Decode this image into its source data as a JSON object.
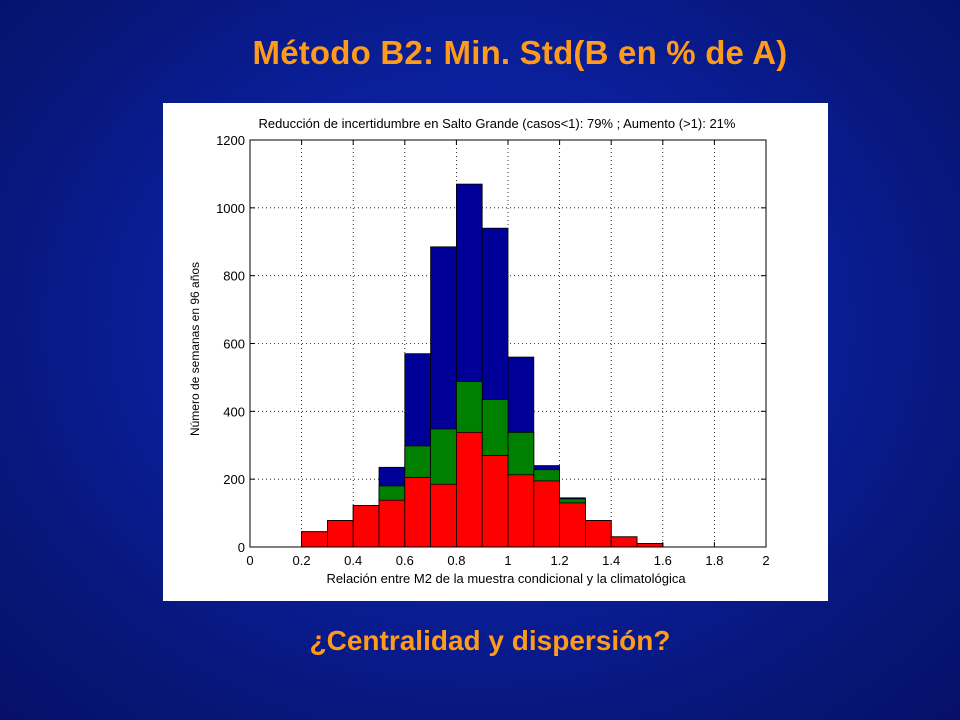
{
  "slide": {
    "title": "Método B2: Min. Std(B en % de A)",
    "subtitle": "¿Centralidad y dispersión?"
  },
  "colors": {
    "background": "#0a1f9a",
    "title_text": "#ff9a1a",
    "series_red": "#ff0000",
    "series_green": "#008000",
    "series_blue": "#000099"
  },
  "chart_data": {
    "type": "bar",
    "stacked": true,
    "title": "Reducción de incertidumbre en Salto Grande (casos<1): 79% ; Aumento (>1): 21%",
    "xlabel": "Relación entre M2 de la muestra condicional y la climatológica",
    "ylabel": "Número de semanas en 96 años",
    "xlim": [
      0,
      2
    ],
    "ylim": [
      0,
      1200
    ],
    "xticks": [
      "0",
      "0.2",
      "0.4",
      "0.6",
      "0.8",
      "1",
      "1.2",
      "1.4",
      "1.6",
      "1.8",
      "2"
    ],
    "yticks": [
      "0",
      "200",
      "400",
      "600",
      "800",
      "1000",
      "1200"
    ],
    "grid": true,
    "bin_width": 0.1,
    "bin_centers": [
      0.25,
      0.35,
      0.45,
      0.55,
      0.65,
      0.75,
      0.85,
      0.95,
      1.05,
      1.15,
      1.25,
      1.35,
      1.45,
      1.55
    ],
    "series": [
      {
        "color": "#ff0000",
        "cumulative_values": [
          45,
          78,
          122,
          138,
          205,
          185,
          338,
          270,
          213,
          195,
          130,
          78,
          30,
          10
        ]
      },
      {
        "color": "#008000",
        "cumulative_values": [
          45,
          78,
          122,
          180,
          298,
          348,
          488,
          435,
          338,
          228,
          142,
          78,
          30,
          10
        ]
      },
      {
        "color": "#000099",
        "cumulative_values": [
          45,
          78,
          122,
          235,
          570,
          885,
          1070,
          940,
          560,
          240,
          145,
          78,
          30,
          10
        ]
      }
    ]
  }
}
